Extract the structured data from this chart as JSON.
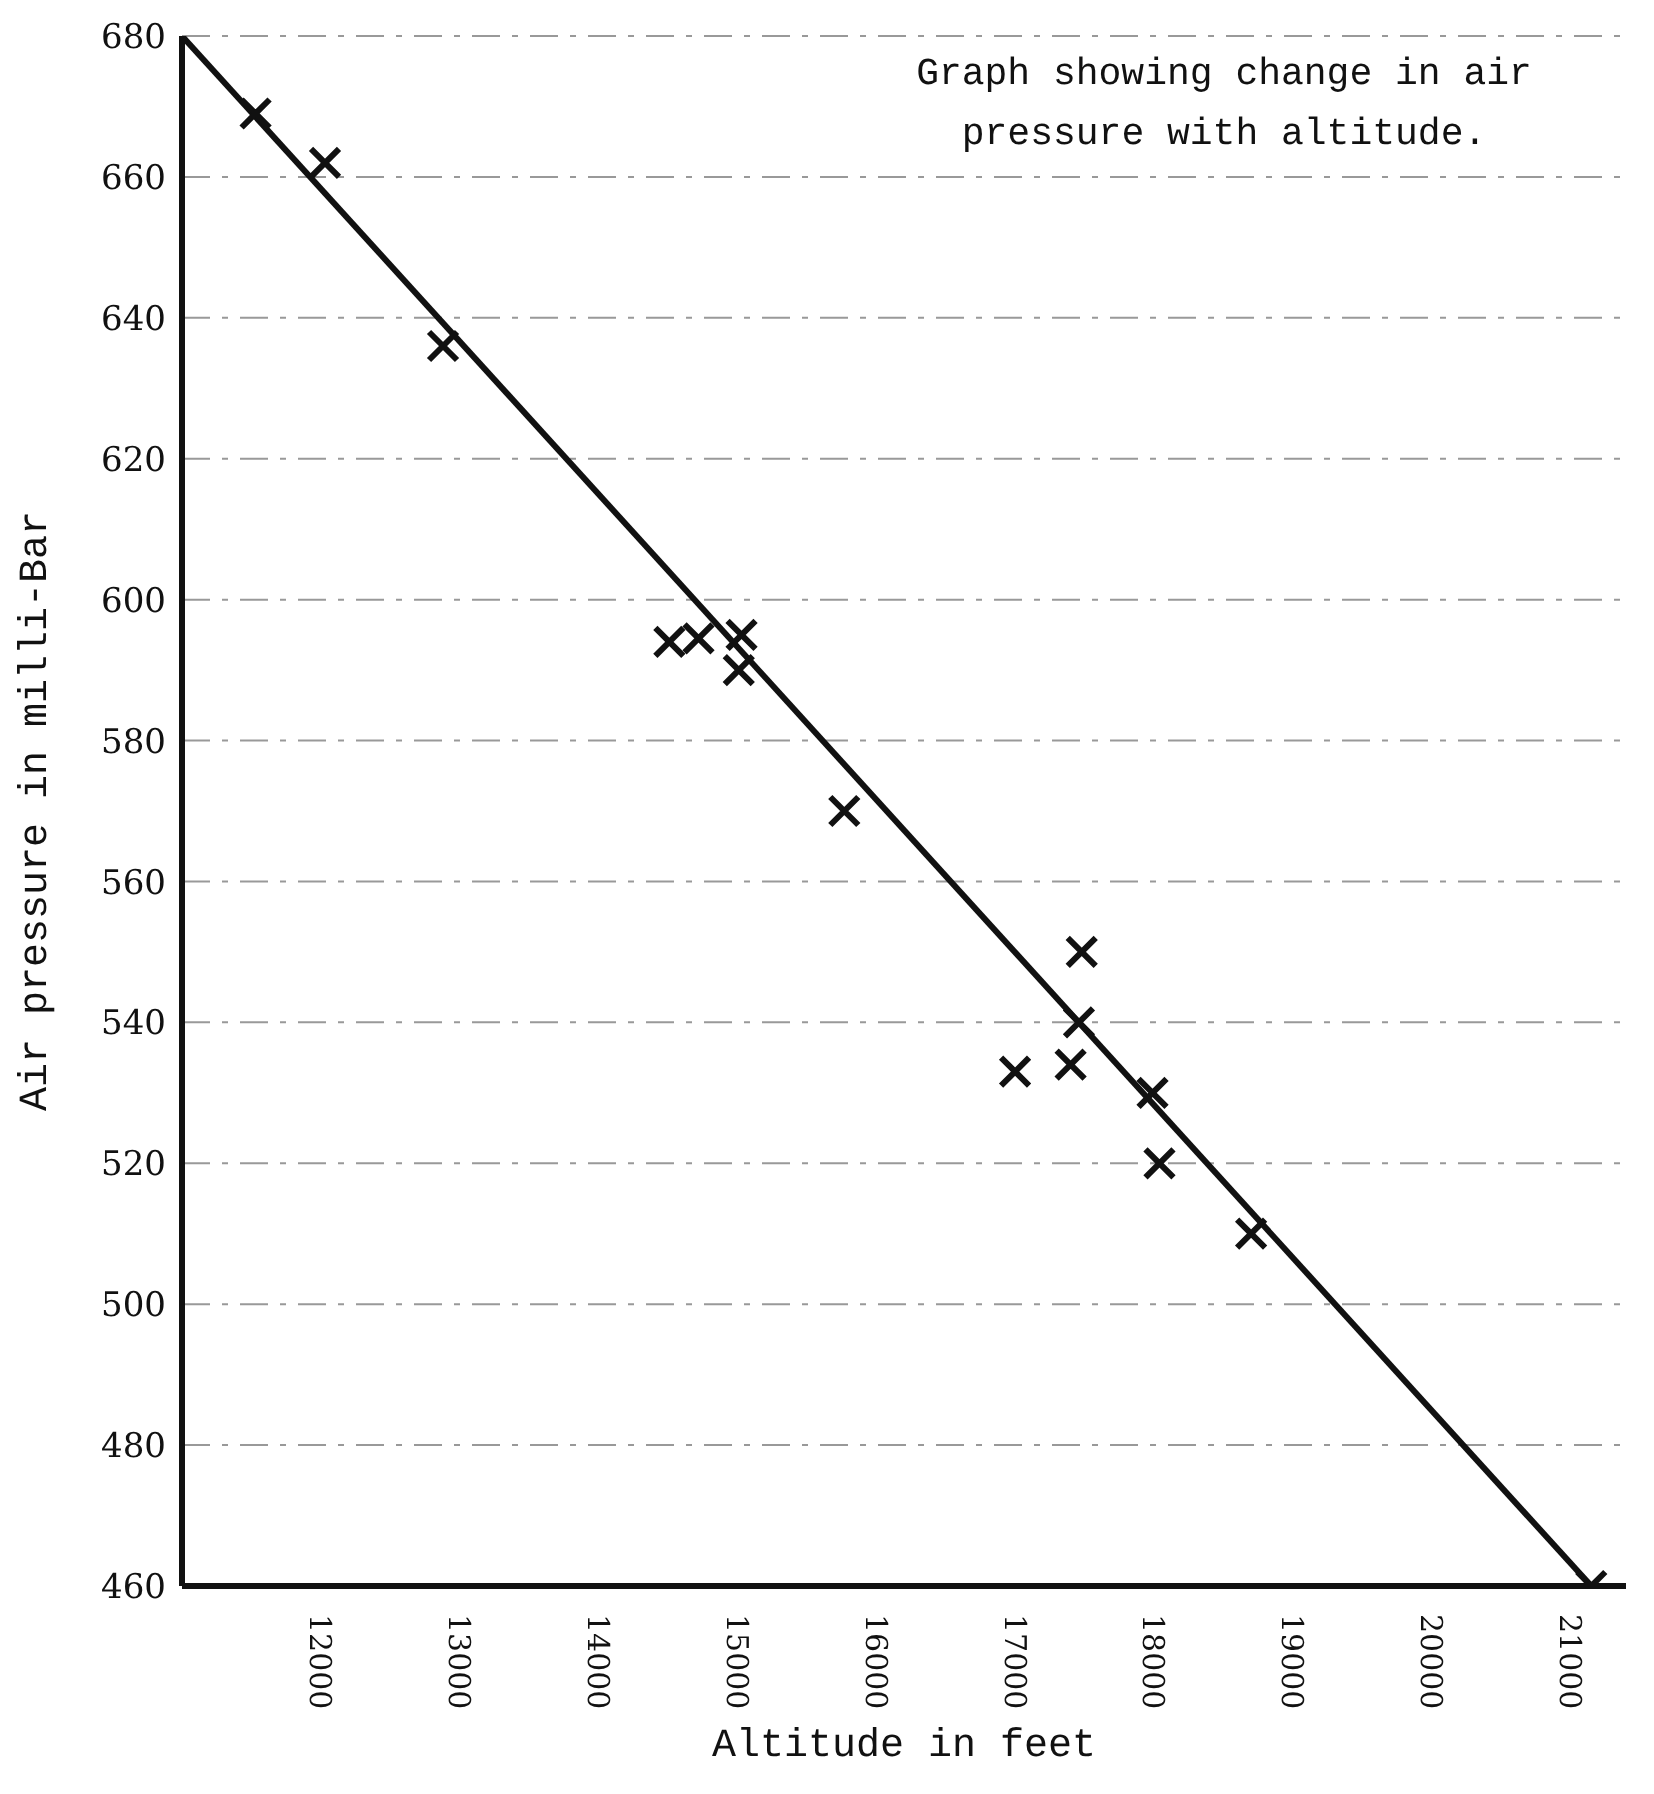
{
  "chart_data": {
    "type": "scatter",
    "title": "Graph showing change in air pressure with altitude.",
    "xlabel": "Altitude in feet",
    "ylabel": "Air pressure in milli-Bar",
    "x": [
      11530,
      12030,
      12880,
      14510,
      14720,
      15030,
      15010,
      15770,
      17480,
      17460,
      17000,
      17400,
      17990,
      18040,
      18700,
      21150
    ],
    "series": [
      {
        "color": "#111111",
        "marker": "cross",
        "values": [
          669,
          662,
          636,
          594,
          594.5,
          595,
          590,
          570,
          550,
          540,
          533,
          534,
          530,
          520,
          510,
          460
        ]
      },
      {
        "type": "line",
        "color": "#111111",
        "marker": "none",
        "x": [
          11000,
          21150
        ],
        "values": [
          680,
          460
        ]
      }
    ],
    "xlim": [
      11000,
      21400
    ],
    "xticks": [
      12000,
      13000,
      14000,
      15000,
      16000,
      17000,
      18000,
      19000,
      20000,
      21000
    ],
    "ylim": [
      460,
      680
    ],
    "yticks": [
      460,
      480,
      500,
      520,
      540,
      560,
      580,
      600,
      620,
      640,
      660,
      680
    ],
    "grid": "y",
    "line_style": "solid"
  }
}
